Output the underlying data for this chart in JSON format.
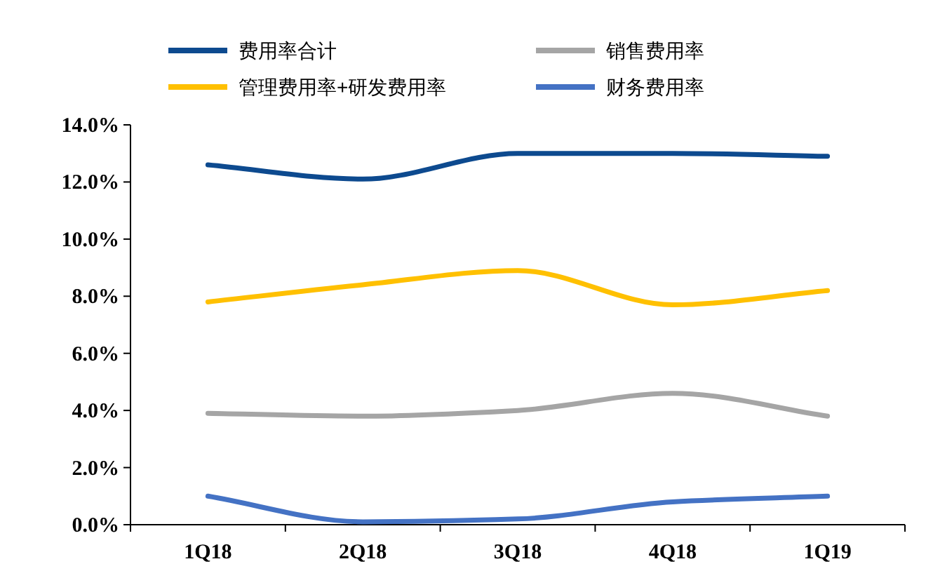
{
  "chart_data": {
    "type": "line",
    "categories": [
      "1Q18",
      "2Q18",
      "3Q18",
      "4Q18",
      "1Q19"
    ],
    "series": [
      {
        "name": "费用率合计",
        "color": "#0d4a8f",
        "values": [
          12.6,
          12.1,
          13.0,
          13.0,
          12.9
        ]
      },
      {
        "name": "销售费用率",
        "color": "#a5a5a5",
        "values": [
          3.9,
          3.8,
          4.0,
          4.6,
          3.8
        ]
      },
      {
        "name": "管理费用率+研发费用率",
        "color": "#ffc000",
        "values": [
          7.8,
          8.4,
          8.9,
          7.7,
          8.2
        ]
      },
      {
        "name": "财务费用率",
        "color": "#4472c4",
        "values": [
          1.0,
          0.1,
          0.2,
          0.8,
          1.0
        ]
      }
    ],
    "ylim": [
      0,
      14
    ],
    "yticks": [
      {
        "value": 0,
        "label": "0.0%"
      },
      {
        "value": 2,
        "label": "2.0%"
      },
      {
        "value": 4,
        "label": "4.0%"
      },
      {
        "value": 6,
        "label": "6.0%"
      },
      {
        "value": 8,
        "label": "8.0%"
      },
      {
        "value": 10,
        "label": "10.0%"
      },
      {
        "value": 12,
        "label": "12.0%"
      },
      {
        "value": 14,
        "label": "14.0%"
      }
    ],
    "legend": "top",
    "grid": false,
    "marker": "none",
    "line_style": "solid"
  }
}
